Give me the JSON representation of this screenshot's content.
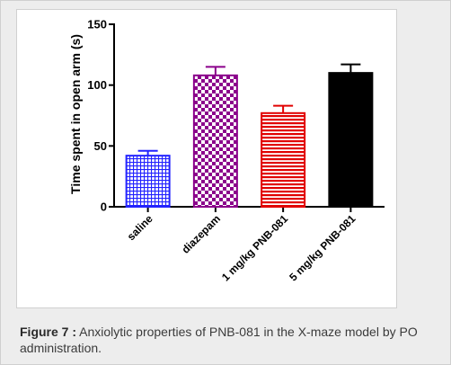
{
  "chart_data": {
    "type": "bar",
    "ylabel": "Time spent in open arm (s)",
    "xlabel": "",
    "ylim": [
      0,
      150
    ],
    "yticks": [
      0,
      50,
      100,
      150
    ],
    "categories": [
      "saline",
      "diazepam",
      "1 mg/kg PNB-081",
      "5 mg/kg PNB-081"
    ],
    "values": [
      42,
      108,
      77,
      110
    ],
    "errors": [
      4,
      7,
      6,
      7
    ],
    "bar_colors": [
      "#2323ff",
      "#8b008b",
      "#e10000",
      "#000000"
    ],
    "bar_patterns": [
      "grid",
      "checker",
      "hstripes",
      "solid"
    ],
    "grid": false,
    "legend": "none"
  },
  "caption": {
    "label": "Figure 7 :",
    "text": " Anxiolytic properties of PNB-081 in the X-maze model by PO administration."
  }
}
